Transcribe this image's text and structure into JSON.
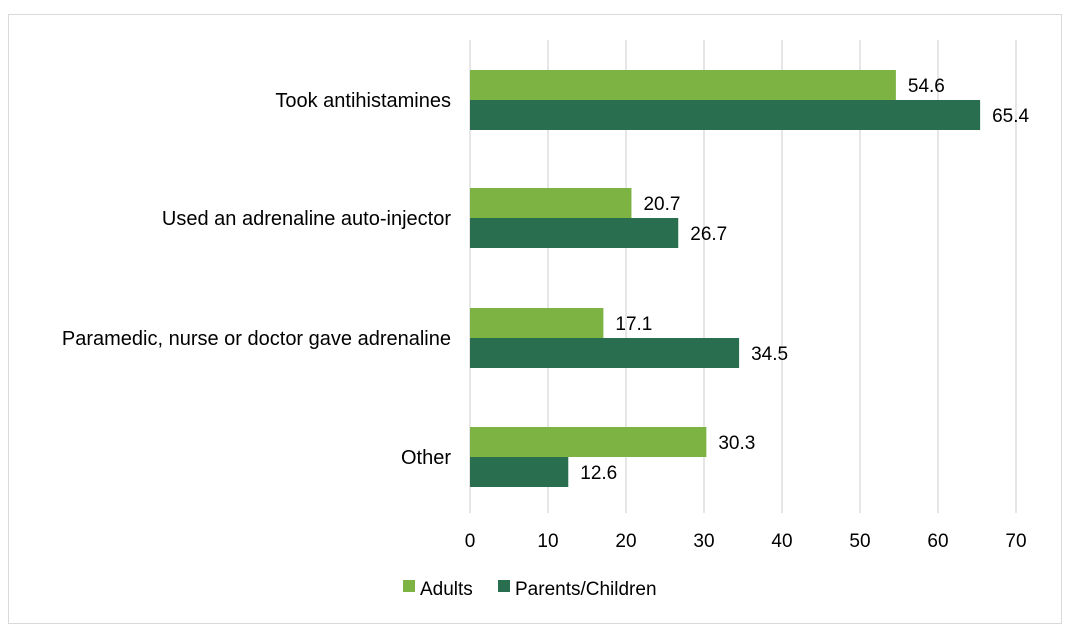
{
  "chart_data": {
    "type": "bar",
    "orientation": "horizontal",
    "categories": [
      "Took antihistamines",
      "Used an adrenaline auto-injector",
      "Paramedic, nurse or doctor gave adrenaline",
      "Other"
    ],
    "series": [
      {
        "name": "Adults",
        "color": "#7cb342",
        "values": [
          54.6,
          20.7,
          17.1,
          30.3
        ]
      },
      {
        "name": "Parents/Children",
        "color": "#2a6e50",
        "values": [
          65.4,
          26.7,
          34.5,
          12.6
        ]
      }
    ],
    "xlim": [
      0,
      70
    ],
    "xticks": [
      0,
      10,
      20,
      30,
      40,
      50,
      60,
      70
    ],
    "grid": true,
    "gridColor": "#d9d9d9",
    "legend_position": "bottom"
  }
}
